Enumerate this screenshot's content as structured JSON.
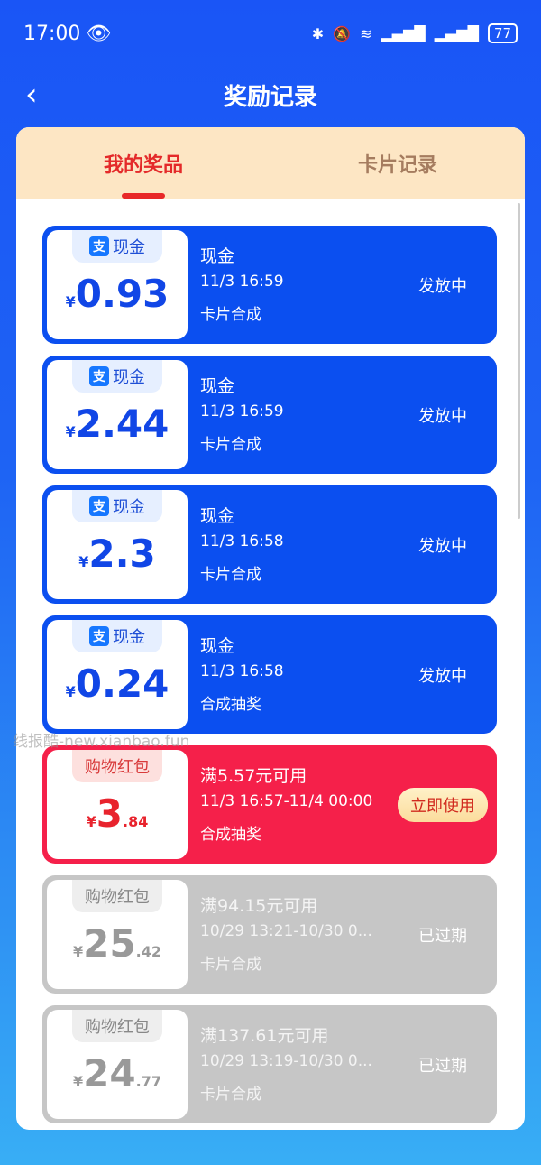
{
  "status_bar": {
    "time": "17:00",
    "battery": "77",
    "icons": [
      "eye-icon",
      "bluetooth-icon",
      "mute-icon",
      "wifi-icon",
      "signal-icon",
      "signal-icon",
      "battery-icon"
    ]
  },
  "header": {
    "title": "奖励记录",
    "back_icon": "chevron-left-icon"
  },
  "tabs": [
    {
      "label": "我的奖品",
      "active": true
    },
    {
      "label": "卡片记录",
      "active": false
    }
  ],
  "watermark": "线报酷-new.xianbao.fun",
  "colors": {
    "cash": "#0b4ff0",
    "active_coupon": "#f5204a",
    "expired": "#c6c6c6",
    "tab_active": "#e42a2a"
  },
  "rewards": [
    {
      "type": "cash",
      "badge": "现金",
      "currency": "¥",
      "int": "0.93",
      "dec": "",
      "name": "现金",
      "time": "11/3 16:59",
      "source": "卡片合成",
      "status": "发放中"
    },
    {
      "type": "cash",
      "badge": "现金",
      "currency": "¥",
      "int": "2.44",
      "dec": "",
      "name": "现金",
      "time": "11/3 16:59",
      "source": "卡片合成",
      "status": "发放中"
    },
    {
      "type": "cash",
      "badge": "现金",
      "currency": "¥",
      "int": "2.3",
      "dec": "",
      "name": "现金",
      "time": "11/3 16:58",
      "source": "卡片合成",
      "status": "发放中"
    },
    {
      "type": "cash",
      "badge": "现金",
      "currency": "¥",
      "int": "0.24",
      "dec": "",
      "name": "现金",
      "time": "11/3 16:58",
      "source": "合成抽奖",
      "status": "发放中"
    },
    {
      "type": "coupon",
      "badge": "购物红包",
      "currency": "¥",
      "int": "3",
      "dec": ".84",
      "name": "满5.57元可用",
      "time": "11/3 16:57-11/4 00:00",
      "source": "合成抽奖",
      "status": "立即使用"
    },
    {
      "type": "expired",
      "badge": "购物红包",
      "currency": "¥",
      "int": "25",
      "dec": ".42",
      "name": "满94.15元可用",
      "time": "10/29 13:21-10/30 0...",
      "source": "卡片合成",
      "status": "已过期"
    },
    {
      "type": "expired",
      "badge": "购物红包",
      "currency": "¥",
      "int": "24",
      "dec": ".77",
      "name": "满137.61元可用",
      "time": "10/29 13:19-10/30 0...",
      "source": "卡片合成",
      "status": "已过期"
    }
  ]
}
